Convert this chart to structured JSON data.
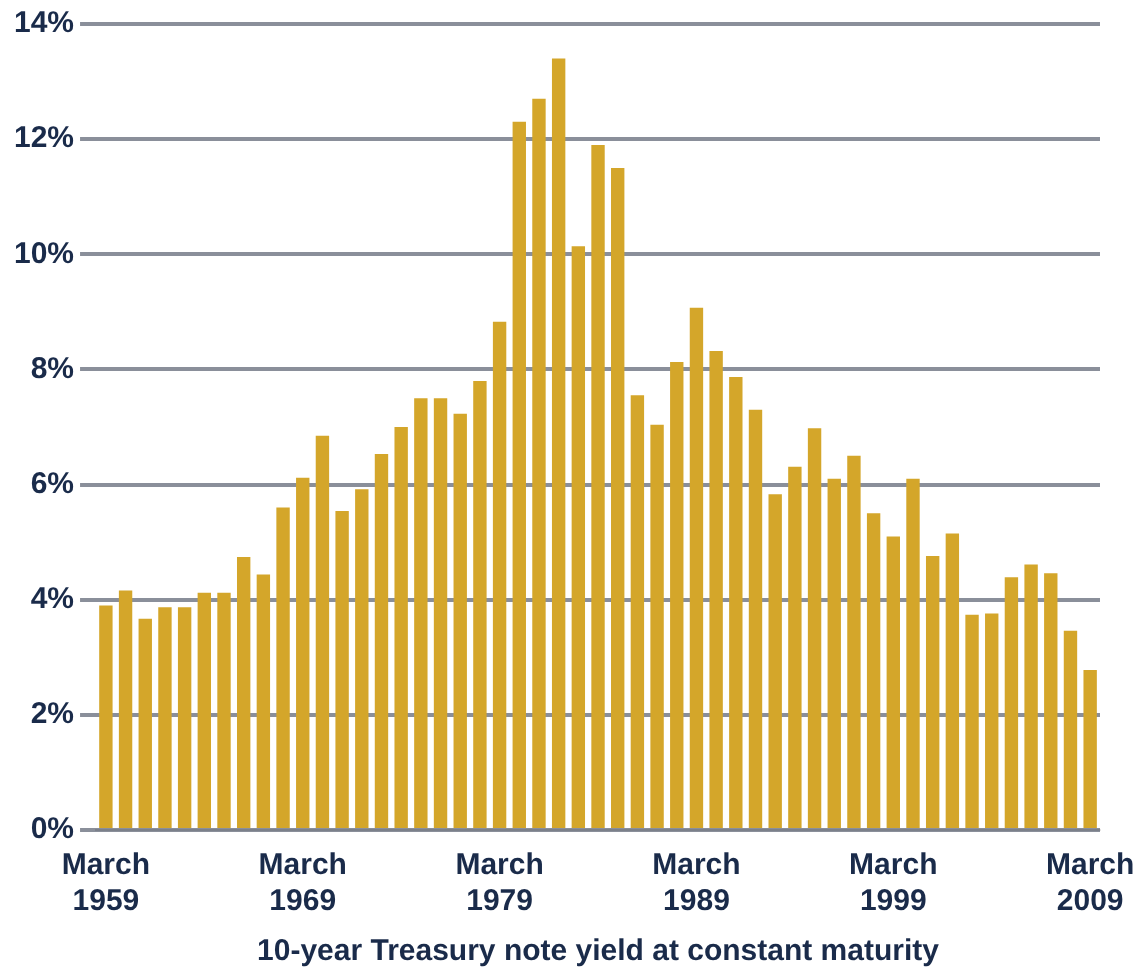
{
  "chart_data": {
    "type": "bar",
    "xlabel": "10-year Treasury note yield at constant maturity",
    "categories": [
      "March 1959",
      null,
      null,
      null,
      null,
      null,
      null,
      null,
      null,
      null,
      "March 1969",
      null,
      null,
      null,
      null,
      null,
      null,
      null,
      null,
      null,
      "March 1979",
      null,
      null,
      null,
      null,
      null,
      null,
      null,
      null,
      null,
      "March 1989",
      null,
      null,
      null,
      null,
      null,
      null,
      null,
      null,
      null,
      "March 1999",
      null,
      null,
      null,
      null,
      null,
      null,
      null,
      null,
      null,
      "March 2009"
    ],
    "values": [
      3.9,
      4.16,
      3.67,
      3.87,
      3.87,
      4.12,
      4.12,
      4.74,
      4.44,
      5.6,
      6.12,
      6.85,
      5.54,
      5.92,
      6.53,
      7.0,
      7.5,
      7.5,
      7.23,
      7.8,
      8.83,
      12.3,
      12.7,
      13.4,
      10.14,
      11.9,
      11.5,
      7.55,
      7.04,
      8.13,
      9.07,
      8.32,
      7.87,
      7.3,
      5.83,
      6.31,
      6.98,
      6.1,
      6.5,
      5.5,
      5.1,
      6.1,
      4.76,
      5.15,
      3.74,
      3.76,
      4.39,
      4.61,
      4.46,
      3.46,
      2.78
    ],
    "color": "#d4a62a",
    "ylim": [
      0,
      14
    ],
    "yticks": [
      {
        "value": 0,
        "label": "0%"
      },
      {
        "value": 2,
        "label": "2%"
      },
      {
        "value": 4,
        "label": "4%"
      },
      {
        "value": 6,
        "label": "6%"
      },
      {
        "value": 8,
        "label": "8%"
      },
      {
        "value": 10,
        "label": "10%"
      },
      {
        "value": 12,
        "label": "12%"
      },
      {
        "value": 14,
        "label": "14%"
      }
    ],
    "grid": "y",
    "legend": false
  }
}
